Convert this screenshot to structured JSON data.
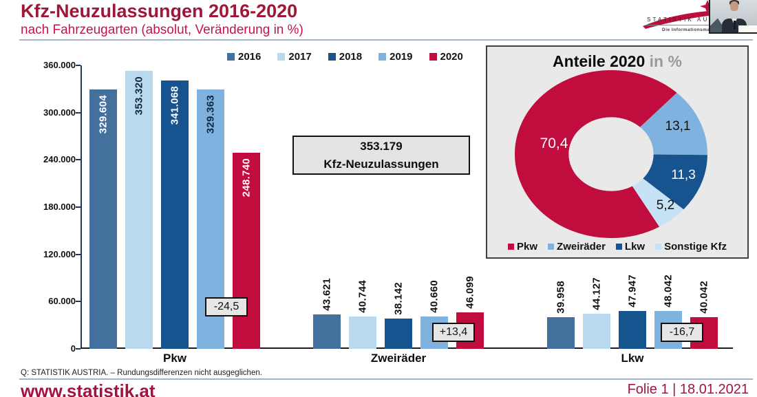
{
  "header": {
    "title": "Kfz-Neuzulassungen 2016-2020",
    "subtitle": "nach Fahrzeugarten (absolut, Veränderung in %)"
  },
  "palette": {
    "crimson": "#C00D3D",
    "title_red": "#A01638",
    "subtitle_red": "#C3134E",
    "divider_blue_gray": "#A3B4C9",
    "panel_gray": "#E9E9E9"
  },
  "chart_data": [
    {
      "type": "bar",
      "title": "Kfz-Neuzulassungen 2016-2020 nach Fahrzeugarten",
      "categories": [
        "Pkw",
        "Zweiräder",
        "Lkw"
      ],
      "series": [
        {
          "name": "2016",
          "color": "#44709D",
          "dark": true,
          "bold": false,
          "values": [
            329604,
            43621,
            39958
          ],
          "labels": [
            "329.604",
            "43.621",
            "39.958"
          ]
        },
        {
          "name": "2017",
          "color": "#B9DAEE",
          "dark": false,
          "bold": false,
          "values": [
            353320,
            40744,
            44127
          ],
          "labels": [
            "353.320",
            "40.744",
            "44.127"
          ]
        },
        {
          "name": "2018",
          "color": "#17538F",
          "dark": true,
          "bold": false,
          "values": [
            341068,
            38142,
            47947
          ],
          "labels": [
            "341.068",
            "38.142",
            "47.947"
          ]
        },
        {
          "name": "2019",
          "color": "#7FB2DE",
          "dark": false,
          "bold": false,
          "values": [
            329363,
            40660,
            48042
          ],
          "labels": [
            "329.363",
            "40.660",
            "48.042"
          ]
        },
        {
          "name": "2020",
          "color": "#C00D3D",
          "dark": true,
          "bold": true,
          "values": [
            248740,
            46099,
            40042
          ],
          "labels": [
            "248.740",
            "46.099",
            "40.042"
          ]
        }
      ],
      "change_labels": [
        {
          "category": "Pkw",
          "text": "-24,5"
        },
        {
          "category": "Zweiräder",
          "text": "+13,4"
        },
        {
          "category": "Lkw",
          "text": "-16,7"
        }
      ],
      "ylim": [
        0,
        360000
      ],
      "yticks": [
        "360.000",
        "300.000",
        "240.000",
        "180.000",
        "120.000",
        "60.000",
        "0"
      ],
      "grid": false,
      "legend_position": "top"
    },
    {
      "type": "pie",
      "subtype": "donut",
      "title": "Anteile 2020 in %",
      "labels": [
        "Pkw",
        "Zweiräder",
        "Lkw",
        "Sonstige Kfz"
      ],
      "values": [
        70.4,
        13.1,
        11.3,
        5.2
      ],
      "value_labels": [
        "70,4",
        "13,1",
        "11,3",
        "5,2"
      ],
      "colors": [
        "#C00D3D",
        "#7FB2DE",
        "#17538F",
        "#C7E2F4"
      ],
      "start_angle_deg": 150,
      "legend_position": "bottom"
    }
  ],
  "info_box": {
    "value": "353.179",
    "label": "Kfz-Neuzulassungen"
  },
  "donut_panel": {
    "title_main": "Anteile 2020",
    "title_suffix": "in %"
  },
  "logo": {
    "name": "STATISTIK AUSTRIA",
    "tagline": "Die Informationsmanager"
  },
  "footer": {
    "source": "Q: STATISTIK AUSTRIA. – Rundungsdifferenzen nicht ausgeglichen.",
    "website": "www.statistik.at",
    "slide_info": "Folie 1 | 18.01.2021"
  }
}
